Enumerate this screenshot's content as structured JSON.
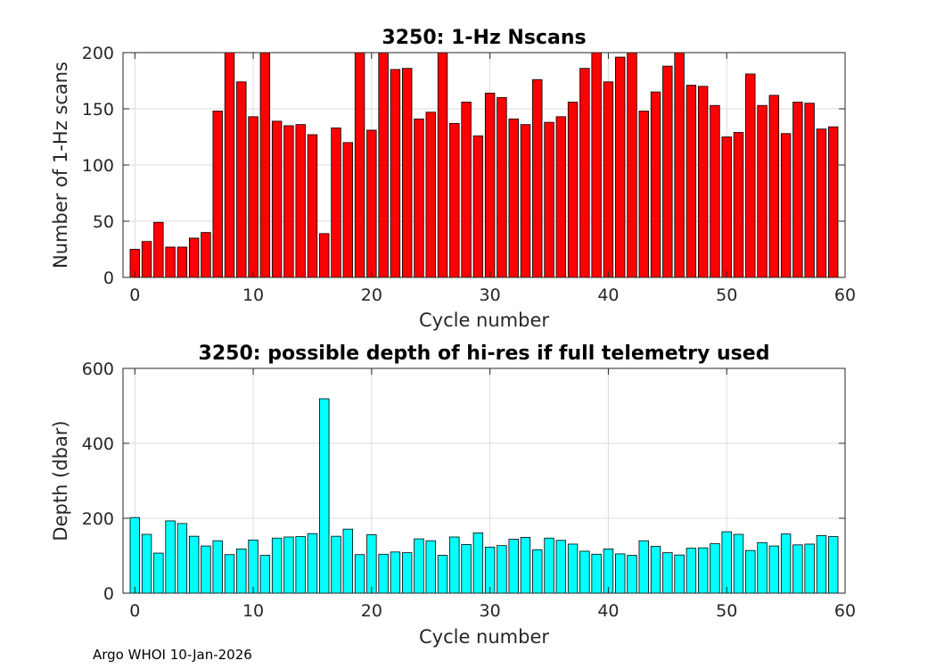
{
  "footer": "Argo WHOI 10-Jan-2026",
  "chart_data": [
    {
      "type": "bar",
      "title": "3250: 1-Hz Nscans",
      "xlabel": "Cycle number",
      "ylabel": "Number of 1-Hz scans",
      "xlim": [
        -1,
        60
      ],
      "ylim": [
        0,
        200
      ],
      "xticks": [
        0,
        10,
        20,
        30,
        40,
        50,
        60
      ],
      "yticks": [
        0,
        50,
        100,
        150,
        200
      ],
      "grid": true,
      "color": "#ff0000",
      "x": [
        0,
        1,
        2,
        3,
        4,
        5,
        6,
        7,
        8,
        9,
        10,
        11,
        12,
        13,
        14,
        15,
        16,
        17,
        18,
        19,
        20,
        21,
        22,
        23,
        24,
        25,
        26,
        27,
        28,
        29,
        30,
        31,
        32,
        33,
        34,
        35,
        36,
        37,
        38,
        39,
        40,
        41,
        42,
        43,
        44,
        45,
        46,
        47,
        48,
        49,
        50,
        51,
        52,
        53,
        54,
        55,
        56,
        57,
        58,
        59
      ],
      "values": [
        25,
        32,
        49,
        27,
        27,
        35,
        40,
        148,
        200,
        174,
        143,
        200,
        139,
        135,
        136,
        127,
        39,
        133,
        120,
        200,
        131,
        200,
        185,
        186,
        141,
        147,
        200,
        137,
        156,
        126,
        164,
        160,
        141,
        136,
        176,
        138,
        143,
        156,
        186,
        200,
        174,
        196,
        200,
        148,
        165,
        188,
        200,
        171,
        170,
        153,
        125,
        129,
        181,
        153,
        162,
        128,
        156,
        155,
        132,
        134
      ]
    },
    {
      "type": "bar",
      "title": "3250: possible depth of hi-res if full telemetry used",
      "xlabel": "Cycle number",
      "ylabel": "Depth (dbar)",
      "xlim": [
        -1,
        60
      ],
      "ylim": [
        0,
        600
      ],
      "xticks": [
        0,
        10,
        20,
        30,
        40,
        50,
        60
      ],
      "yticks": [
        0,
        200,
        400,
        600
      ],
      "grid": true,
      "color": "#00ffff",
      "x": [
        0,
        1,
        2,
        3,
        4,
        5,
        6,
        7,
        8,
        9,
        10,
        11,
        12,
        13,
        14,
        15,
        16,
        17,
        18,
        19,
        20,
        21,
        22,
        23,
        24,
        25,
        26,
        27,
        28,
        29,
        30,
        31,
        32,
        33,
        34,
        35,
        36,
        37,
        38,
        39,
        40,
        41,
        42,
        43,
        44,
        45,
        46,
        47,
        48,
        49,
        50,
        51,
        52,
        53,
        54,
        55,
        56,
        57,
        58,
        59
      ],
      "values": [
        202,
        157,
        107,
        193,
        186,
        152,
        126,
        140,
        103,
        118,
        142,
        101,
        147,
        150,
        151,
        159,
        519,
        152,
        171,
        103,
        156,
        104,
        110,
        108,
        145,
        140,
        101,
        150,
        130,
        161,
        123,
        127,
        144,
        149,
        116,
        147,
        141,
        131,
        112,
        104,
        118,
        105,
        101,
        140,
        125,
        108,
        102,
        120,
        121,
        132,
        164,
        157,
        114,
        135,
        126,
        158,
        129,
        131,
        154,
        151
      ]
    }
  ]
}
